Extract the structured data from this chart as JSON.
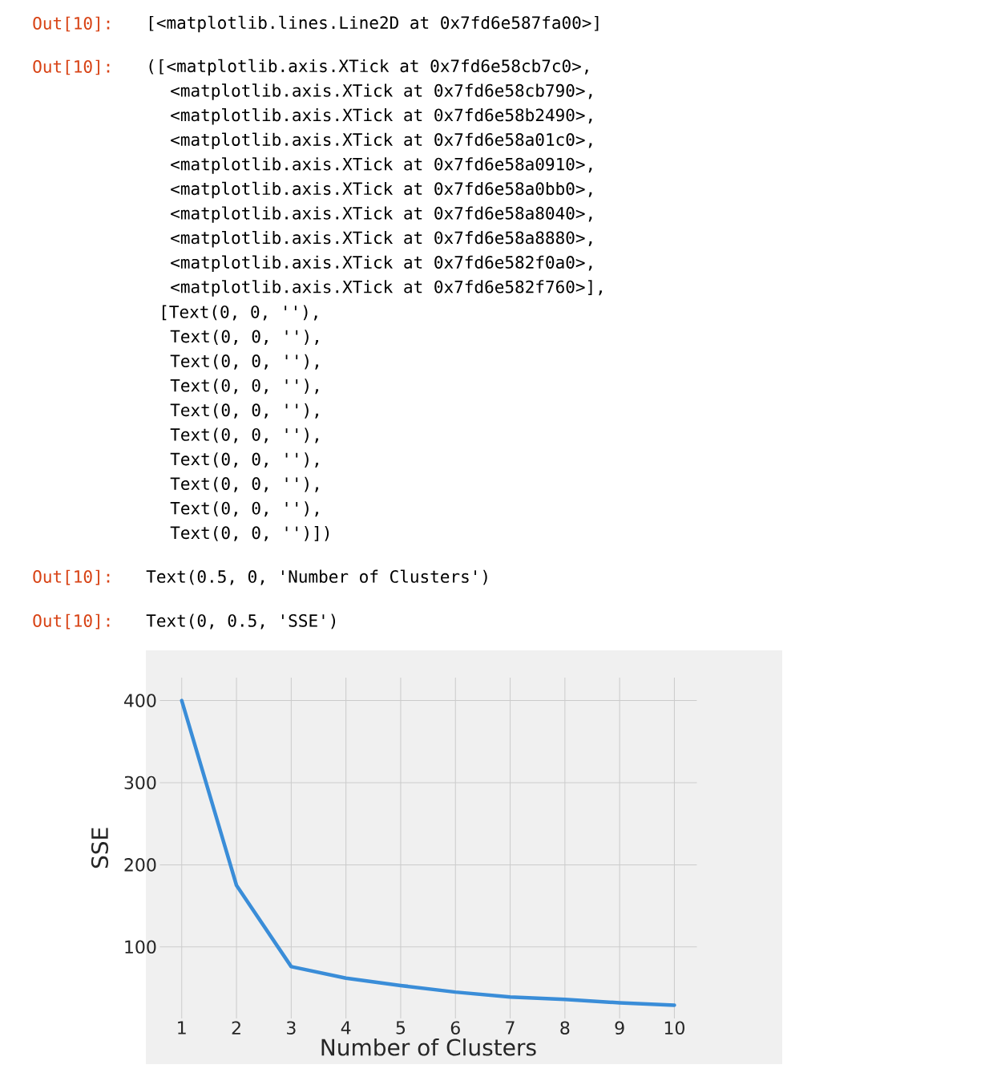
{
  "chart_data": {
    "type": "line",
    "xlabel": "Number of Clusters",
    "ylabel": "SSE",
    "x": [
      1,
      2,
      3,
      4,
      5,
      6,
      7,
      8,
      9,
      10
    ],
    "series": [
      {
        "color": "#3a8dd8",
        "values": [
          400,
          175,
          76,
          62,
          53,
          45,
          39,
          36,
          32,
          29
        ]
      }
    ],
    "xlim": [
      0.6,
      10.41
    ],
    "ylim": [
      13,
      428
    ],
    "xticks": [
      1,
      2,
      3,
      4,
      5,
      6,
      7,
      8,
      9,
      10
    ],
    "yticks": [
      100,
      200,
      300,
      400
    ],
    "grid": true,
    "line_style": "solid",
    "annotations": [
      "Out[10]:",
      "[<matplotlib.lines.Line2D at 0x7fd6e587fa00>]",
      "Out[10]:",
      "([<matplotlib.axis.XTick at 0x7fd6e58cb7c0>,",
      "<matplotlib.axis.XTick at 0x7fd6e58cb790>,",
      "<matplotlib.axis.XTick at 0x7fd6e58b2490>,",
      "<matplotlib.axis.XTick at 0x7fd6e58a01c0>,",
      "<matplotlib.axis.XTick at 0x7fd6e58a0910>,",
      "<matplotlib.axis.XTick at 0x7fd6e58a0bb0>,",
      "<matplotlib.axis.XTick at 0x7fd6e58a8040>,",
      "<matplotlib.axis.XTick at 0x7fd6e58a8880>,",
      "<matplotlib.axis.XTick at 0x7fd6e582f0a0>,",
      "<matplotlib.axis.XTick at 0x7fd6e582f760>],",
      "[Text(0, 0, ''),",
      "Text(0, 0, ''),",
      "Text(0, 0, ''),",
      "Text(0, 0, ''),",
      "Text(0, 0, ''),",
      "Text(0, 0, ''),",
      "Text(0, 0, ''),",
      "Text(0, 0, ''),",
      "Text(0, 0, ''),",
      "Text(0, 0, '')])",
      "Out[10]:",
      "Text(0.5, 0, 'Number of Clusters')",
      "Out[10]:",
      "Text(0, 0.5, 'SSE')"
    ]
  }
}
